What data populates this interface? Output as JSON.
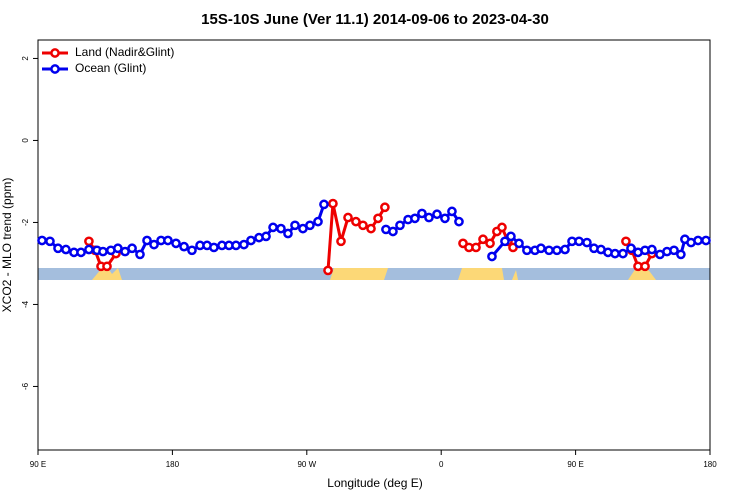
{
  "chart_data": {
    "type": "line",
    "title": "15S-10S June (Ver 11.1)   2014-09-06 to 2023-04-30",
    "x_label": "Longitude (deg E)",
    "y_label": "XCO2 - MLO trend (ppm)",
    "xlim": [
      90,
      540
    ],
    "ylim": [
      -7.55,
      2.45
    ],
    "xticks": [
      {
        "value": 90,
        "label": "90 E"
      },
      {
        "value": 180,
        "label": "180"
      },
      {
        "value": 270,
        "label": "90 W"
      },
      {
        "value": 360,
        "label": "0"
      },
      {
        "value": 450,
        "label": "90 E"
      },
      {
        "value": 540,
        "label": "180"
      }
    ],
    "yticks": [
      -6,
      -4,
      -2,
      0,
      2
    ],
    "legend": "top-left",
    "series": [
      {
        "name": "Land (Nadir&Glint)",
        "color": "#ee0000",
        "x": [
          124.1,
          128.2,
          132.2,
          136.2,
          142.2,
          null,
          284.2,
          287.5,
          292.9,
          297.6,
          302.9,
          307.6,
          313.0,
          317.7,
          322.3,
          null,
          374.6,
          378.6,
          383.3,
          388.0,
          392.7,
          397.3,
          400.7,
          404.7,
          408.1,
          null,
          483.7,
          487.7,
          491.8,
          496.5,
          501.1
        ],
        "values": [
          -2.46,
          -2.68,
          -3.07,
          -3.07,
          -2.76,
          null,
          -3.17,
          -1.54,
          -2.46,
          -1.88,
          -1.98,
          -2.07,
          -2.15,
          -1.9,
          -1.63,
          null,
          -2.51,
          -2.61,
          -2.61,
          -2.41,
          -2.51,
          -2.22,
          -2.12,
          -2.46,
          -2.61,
          null,
          -2.46,
          -2.68,
          -3.07,
          -3.07,
          -2.76
        ]
      },
      {
        "name": "Ocean (Glint)",
        "color": "#0000ee",
        "x": [
          92.7,
          98.0,
          103.4,
          108.7,
          114.1,
          118.8,
          124.1,
          129.5,
          133.5,
          138.8,
          143.5,
          148.3,
          153.0,
          158.3,
          163.0,
          167.7,
          172.4,
          177.0,
          182.4,
          187.8,
          193.1,
          198.5,
          203.2,
          207.8,
          213.2,
          217.9,
          222.6,
          227.9,
          232.6,
          238.0,
          242.7,
          247.4,
          252.7,
          257.4,
          262.1,
          267.4,
          272.1,
          277.5,
          281.5,
          null,
          323.0,
          327.7,
          332.4,
          337.8,
          342.4,
          347.1,
          351.8,
          357.2,
          362.5,
          367.2,
          371.9,
          null,
          394.0,
          402.7,
          406.7,
          412.1,
          417.4,
          422.8,
          426.8,
          432.2,
          437.5,
          442.9,
          447.6,
          452.3,
          457.6,
          462.3,
          467.0,
          471.7,
          476.4,
          481.7,
          487.1,
          491.8,
          496.5,
          501.1,
          506.5,
          511.2,
          515.9,
          520.5,
          523.2,
          527.3,
          532.0,
          537.3
        ],
        "values": [
          -2.44,
          -2.46,
          -2.63,
          -2.66,
          -2.73,
          -2.73,
          -2.66,
          -2.68,
          -2.71,
          -2.68,
          -2.63,
          -2.71,
          -2.63,
          -2.78,
          -2.44,
          -2.54,
          -2.44,
          -2.44,
          -2.51,
          -2.59,
          -2.68,
          -2.56,
          -2.56,
          -2.61,
          -2.56,
          -2.56,
          -2.56,
          -2.54,
          -2.44,
          -2.37,
          -2.34,
          -2.12,
          -2.15,
          -2.27,
          -2.07,
          -2.15,
          -2.07,
          -1.98,
          -1.56,
          null,
          -2.17,
          -2.22,
          -2.07,
          -1.93,
          -1.9,
          -1.78,
          -1.88,
          -1.8,
          -1.9,
          -1.73,
          -1.98,
          null,
          -2.83,
          -2.46,
          -2.34,
          -2.51,
          -2.68,
          -2.68,
          -2.63,
          -2.68,
          -2.68,
          -2.66,
          -2.46,
          -2.46,
          -2.49,
          -2.63,
          -2.66,
          -2.73,
          -2.76,
          -2.76,
          -2.63,
          -2.73,
          -2.68,
          -2.66,
          -2.78,
          -2.71,
          -2.68,
          -2.78,
          -2.41,
          -2.49,
          -2.44,
          -2.44
        ]
      }
    ]
  }
}
